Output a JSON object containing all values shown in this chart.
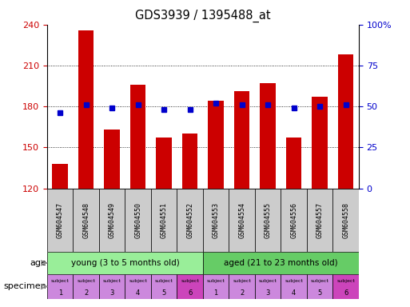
{
  "title": "GDS3939 / 1395488_at",
  "samples": [
    "GSM604547",
    "GSM604548",
    "GSM604549",
    "GSM604550",
    "GSM604551",
    "GSM604552",
    "GSM604553",
    "GSM604554",
    "GSM604555",
    "GSM604556",
    "GSM604557",
    "GSM604558"
  ],
  "counts": [
    138,
    236,
    163,
    196,
    157,
    160,
    184,
    191,
    197,
    157,
    187,
    218
  ],
  "percentiles": [
    46,
    51,
    49,
    51,
    48,
    48,
    52,
    51,
    51,
    49,
    50,
    51
  ],
  "ylim_left": [
    120,
    240
  ],
  "ylim_right": [
    0,
    100
  ],
  "yticks_left": [
    120,
    150,
    180,
    210,
    240
  ],
  "yticks_right": [
    0,
    25,
    50,
    75,
    100
  ],
  "bar_color": "#cc0000",
  "dot_color": "#0000cc",
  "bar_bottom": 120,
  "age_groups": [
    {
      "label": "young (3 to 5 months old)",
      "start": 0,
      "end": 6,
      "color": "#99ee99"
    },
    {
      "label": "aged (21 to 23 months old)",
      "start": 6,
      "end": 12,
      "color": "#66cc66"
    }
  ],
  "specimen_colors_light": "#cc88dd",
  "specimen_colors_dark": "#cc44bb",
  "subject_numbers": [
    1,
    2,
    3,
    4,
    5,
    6,
    1,
    2,
    3,
    4,
    5,
    6
  ],
  "dark_indices": [
    5,
    11
  ],
  "tick_label_color_left": "#cc0000",
  "tick_label_color_right": "#0000cc",
  "xlabel_bg": "#cccccc",
  "arrow_color": "#888888"
}
